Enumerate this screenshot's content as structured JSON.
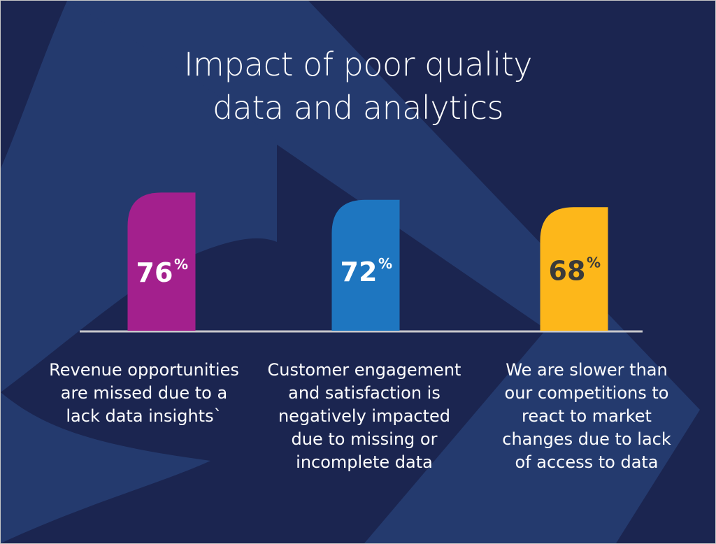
{
  "title_line1": "Impact of poor quality",
  "title_line2": "data and analytics",
  "colors": {
    "background": "#1b2550",
    "accent_shape": "#243a6e",
    "baseline": "#c8c8cc"
  },
  "chart_data": {
    "type": "bar",
    "title": "Impact of poor quality data and analytics",
    "categories": [
      "Revenue opportunities are missed due to a lack data insights`",
      "Customer engagement and satisfaction is negatively impacted due to missing or incomplete data",
      "We are slower than our competitions to react to market changes due to lack of access to data"
    ],
    "values": [
      76,
      72,
      68
    ],
    "unit": "%",
    "labels": [
      "76",
      "72",
      "68"
    ],
    "colors": [
      "#a3208d",
      "#1e76c0",
      "#fdb71a"
    ],
    "label_colors": [
      "#ffffff",
      "#ffffff",
      "#3a3a3a"
    ],
    "grid": false,
    "legend": "none"
  },
  "captions": [
    "Revenue opportunities\nare missed due to a\nlack data insights`",
    "Customer engagement\nand satisfaction is\nnegatively impacted\ndue to missing or\nincomplete data",
    "We are slower than\nour competitions to\nreact to market\nchanges due to lack\nof access to data"
  ]
}
